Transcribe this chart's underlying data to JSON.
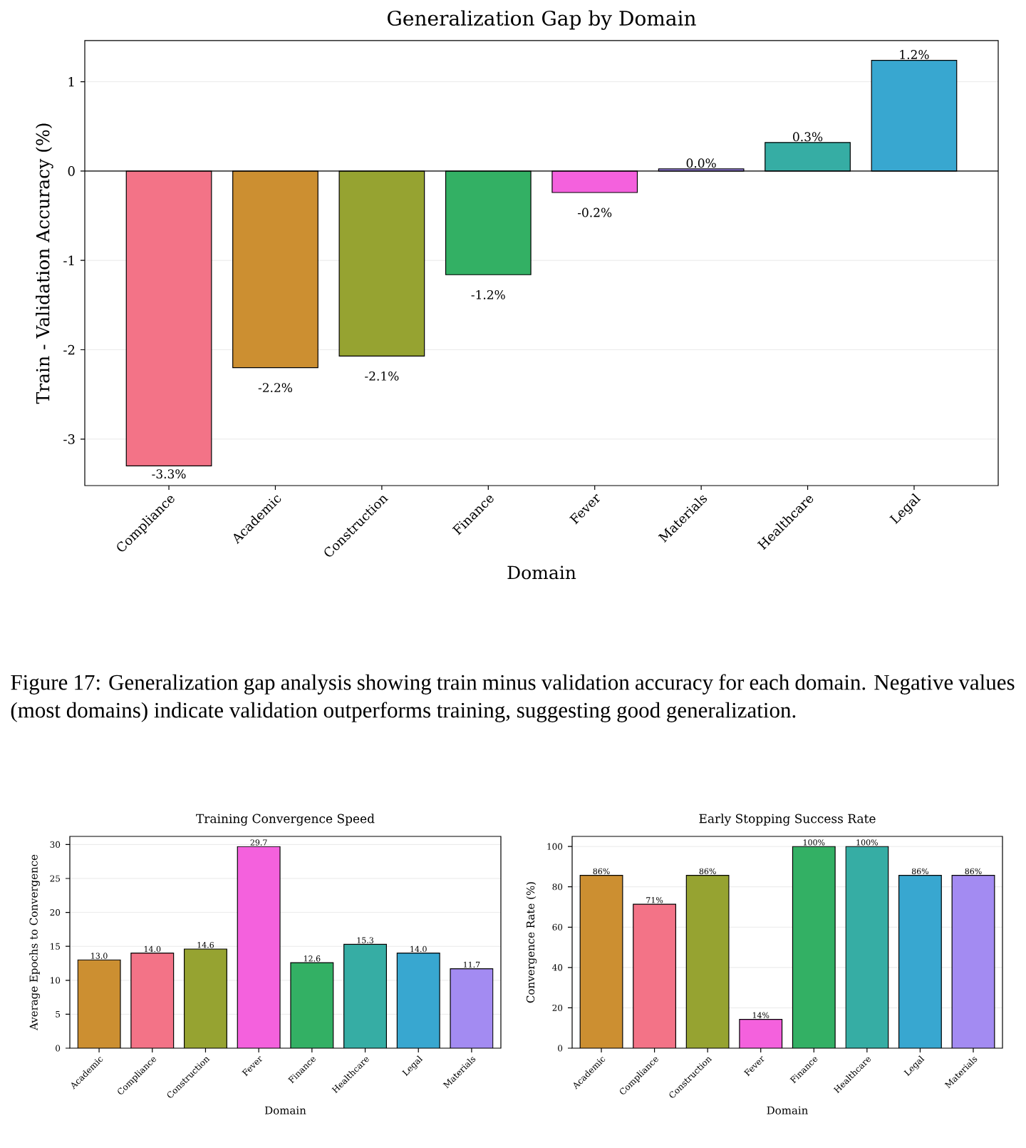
{
  "chart_data": [
    {
      "type": "bar",
      "title": "Generalization Gap by Domain",
      "xlabel": "Domain",
      "ylabel": "Train - Validation Accuracy (%)",
      "categories": [
        "Compliance",
        "Academic",
        "Construction",
        "Finance",
        "Fever",
        "Materials",
        "Healthcare",
        "Legal"
      ],
      "values": [
        -3.3,
        -2.2,
        -2.07,
        -1.16,
        -0.24,
        0.025,
        0.32,
        1.24
      ],
      "value_labels": [
        "-3.3%",
        "-2.2%",
        "-2.1%",
        "-1.2%",
        "-0.2%",
        "0.0%",
        "0.3%",
        "1.2%"
      ],
      "colors": [
        "#f37387",
        "#cc8f31",
        "#96a331",
        "#33b064",
        "#f461dd",
        "#a38bf2",
        "#36ada4",
        "#38a7d0"
      ],
      "ylim": [
        -3.52,
        1.46
      ],
      "yticks": [
        -3,
        -2,
        -1,
        0,
        1
      ],
      "grid": "y",
      "ref_lines": [
        {
          "axis": "y",
          "value": 0,
          "color": "#000000"
        }
      ],
      "annotations": [
        "Figure 17: Generalization gap analysis showing train minus validation accuracy for each domain. Negative values (most domains) indicate validation outperforms training, suggesting good generalization."
      ]
    },
    {
      "type": "bar",
      "title": "Training Convergence Speed",
      "xlabel": "Domain",
      "ylabel": "Average Epochs to Convergence",
      "categories": [
        "Academic",
        "Compliance",
        "Construction",
        "Fever",
        "Finance",
        "Healthcare",
        "Legal",
        "Materials"
      ],
      "values": [
        13.0,
        14.0,
        14.6,
        29.7,
        12.6,
        15.3,
        14.0,
        11.7
      ],
      "value_labels": [
        "13.0",
        "14.0",
        "14.6",
        "29.7",
        "12.6",
        "15.3",
        "14.0",
        "11.7"
      ],
      "colors": [
        "#cc8f31",
        "#f37387",
        "#96a331",
        "#f461dd",
        "#33b064",
        "#36ada4",
        "#38a7d0",
        "#a38bf2"
      ],
      "ylim": [
        0,
        31.2
      ],
      "yticks": [
        0,
        5,
        10,
        15,
        20,
        25,
        30
      ],
      "grid": "y"
    },
    {
      "type": "bar",
      "title": "Early Stopping Success Rate",
      "xlabel": "Domain",
      "ylabel": "Convergence Rate (%)",
      "categories": [
        "Academic",
        "Compliance",
        "Construction",
        "Fever",
        "Finance",
        "Healthcare",
        "Legal",
        "Materials"
      ],
      "values": [
        85.7,
        71.4,
        85.7,
        14.3,
        100,
        100,
        85.7,
        85.7
      ],
      "value_labels": [
        "86%",
        "71%",
        "86%",
        "14%",
        "100%",
        "100%",
        "86%",
        "86%"
      ],
      "colors": [
        "#cc8f31",
        "#f37387",
        "#96a331",
        "#f461dd",
        "#33b064",
        "#36ada4",
        "#38a7d0",
        "#a38bf2"
      ],
      "ylim": [
        0,
        105
      ],
      "yticks": [
        0,
        20,
        40,
        60,
        80,
        100
      ],
      "grid": "y"
    }
  ]
}
